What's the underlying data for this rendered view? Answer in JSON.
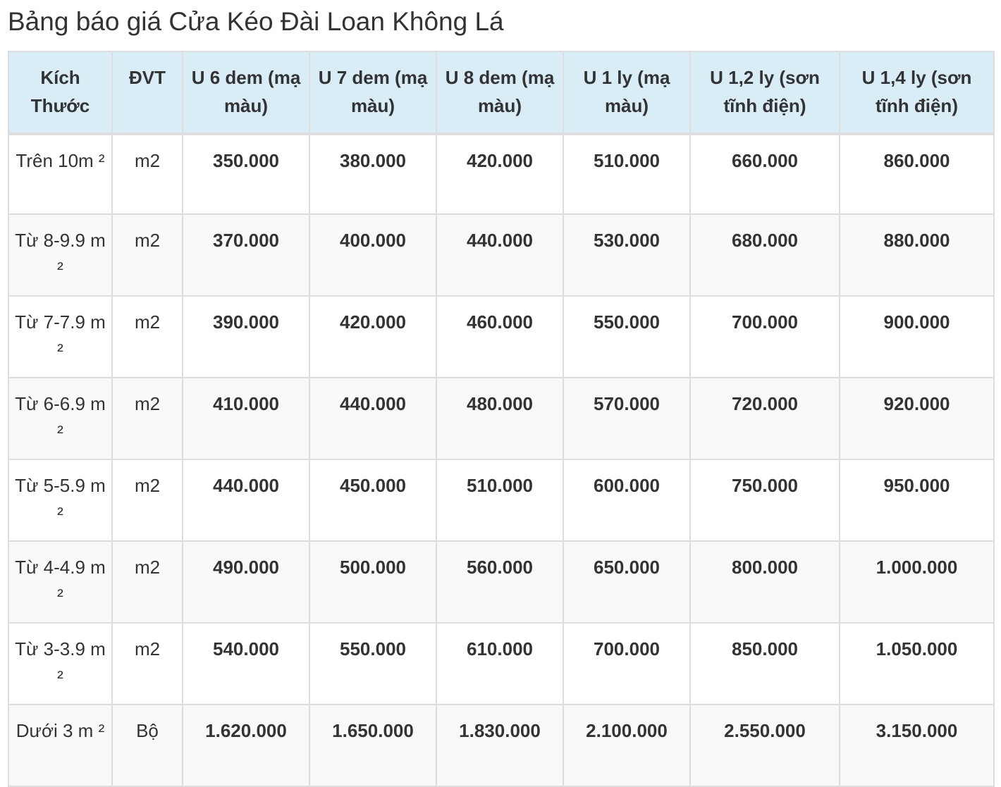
{
  "title": "Bảng báo giá Cửa Kéo Đài Loan Không Lá",
  "columns": [
    "Kích Thước",
    "ĐVT",
    "U 6 dem (mạ màu)",
    "U 7 dem (mạ màu)",
    "U 8 dem (mạ màu)",
    "U 1 ly (mạ màu)",
    "U 1,2 ly (sơn tĩnh điện)",
    "U 1,4 ly (sơn tĩnh điện)"
  ],
  "rows": [
    {
      "size": "Trên 10m ²",
      "unit": "m2",
      "prices": [
        "350.000",
        "380.000",
        "420.000",
        "510.000",
        "660.000",
        "860.000"
      ]
    },
    {
      "size": "Từ 8-9.9 m ²",
      "unit": "m2",
      "prices": [
        "370.000",
        "400.000",
        "440.000",
        "530.000",
        "680.000",
        "880.000"
      ]
    },
    {
      "size": "Từ 7-7.9 m ²",
      "unit": "m2",
      "prices": [
        "390.000",
        "420.000",
        "460.000",
        "550.000",
        "700.000",
        "900.000"
      ]
    },
    {
      "size": "Từ 6-6.9 m ²",
      "unit": "m2",
      "prices": [
        "410.000",
        "440.000",
        "480.000",
        "570.000",
        "720.000",
        "920.000"
      ]
    },
    {
      "size": "Từ 5-5.9 m ²",
      "unit": "m2",
      "prices": [
        "440.000",
        "450.000",
        "510.000",
        "600.000",
        "750.000",
        "950.000"
      ]
    },
    {
      "size": "Từ 4-4.9 m ²",
      "unit": "m2",
      "prices": [
        "490.000",
        "500.000",
        "560.000",
        "650.000",
        "800.000",
        "1.000.000"
      ]
    },
    {
      "size": "Từ 3-3.9 m ²",
      "unit": "m2",
      "prices": [
        "540.000",
        "550.000",
        "610.000",
        "700.000",
        "850.000",
        "1.050.000"
      ]
    },
    {
      "size": "Dưới 3 m ²",
      "unit": "Bộ",
      "prices": [
        "1.620.000",
        "1.650.000",
        "1.830.000",
        "2.100.000",
        "2.550.000",
        "3.150.000"
      ]
    }
  ],
  "colors": {
    "header_bg": "#d9edf7",
    "border": "#dddddd",
    "stripe": "#f9f9f9",
    "text": "#333333"
  }
}
